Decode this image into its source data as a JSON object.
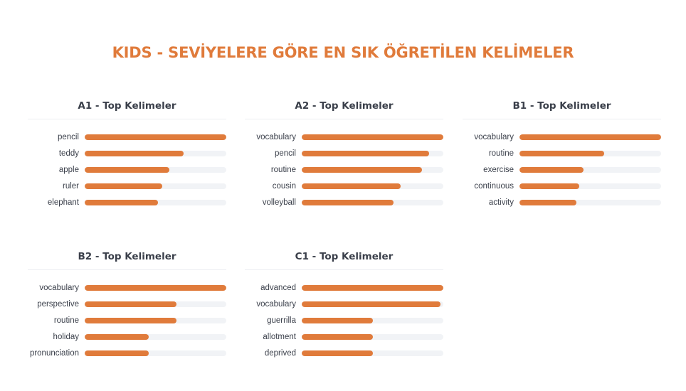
{
  "title": "KIDS - SEVİYELERE GÖRE EN SIK ÖĞRETİLEN KELİMELER",
  "colors": {
    "accent": "#e07b3b",
    "track": "#f1f3f6",
    "text": "#3a3f4a"
  },
  "chart_data": [
    {
      "type": "bar",
      "title": "A1 - Top Kelimeler",
      "categories": [
        "pencil",
        "teddy",
        "apple",
        "ruler",
        "elephant"
      ],
      "values": [
        100,
        70,
        60,
        55,
        52
      ]
    },
    {
      "type": "bar",
      "title": "A2 - Top Kelimeler",
      "categories": [
        "vocabulary",
        "pencil",
        "routine",
        "cousin",
        "volleyball"
      ],
      "values": [
        100,
        90,
        85,
        70,
        65
      ]
    },
    {
      "type": "bar",
      "title": "B1 - Top Kelimeler",
      "categories": [
        "vocabulary",
        "routine",
        "exercise",
        "continuous",
        "activity"
      ],
      "values": [
        100,
        60,
        45,
        42,
        40
      ]
    },
    {
      "type": "bar",
      "title": "B2 - Top Kelimeler",
      "categories": [
        "vocabulary",
        "perspective",
        "routine",
        "holiday",
        "pronunciation"
      ],
      "values": [
        100,
        65,
        65,
        45,
        45
      ]
    },
    {
      "type": "bar",
      "title": "C1 - Top Kelimeler",
      "categories": [
        "advanced",
        "vocabulary",
        "guerrilla",
        "allotment",
        "deprived"
      ],
      "values": [
        100,
        98,
        50,
        50,
        50
      ]
    }
  ]
}
